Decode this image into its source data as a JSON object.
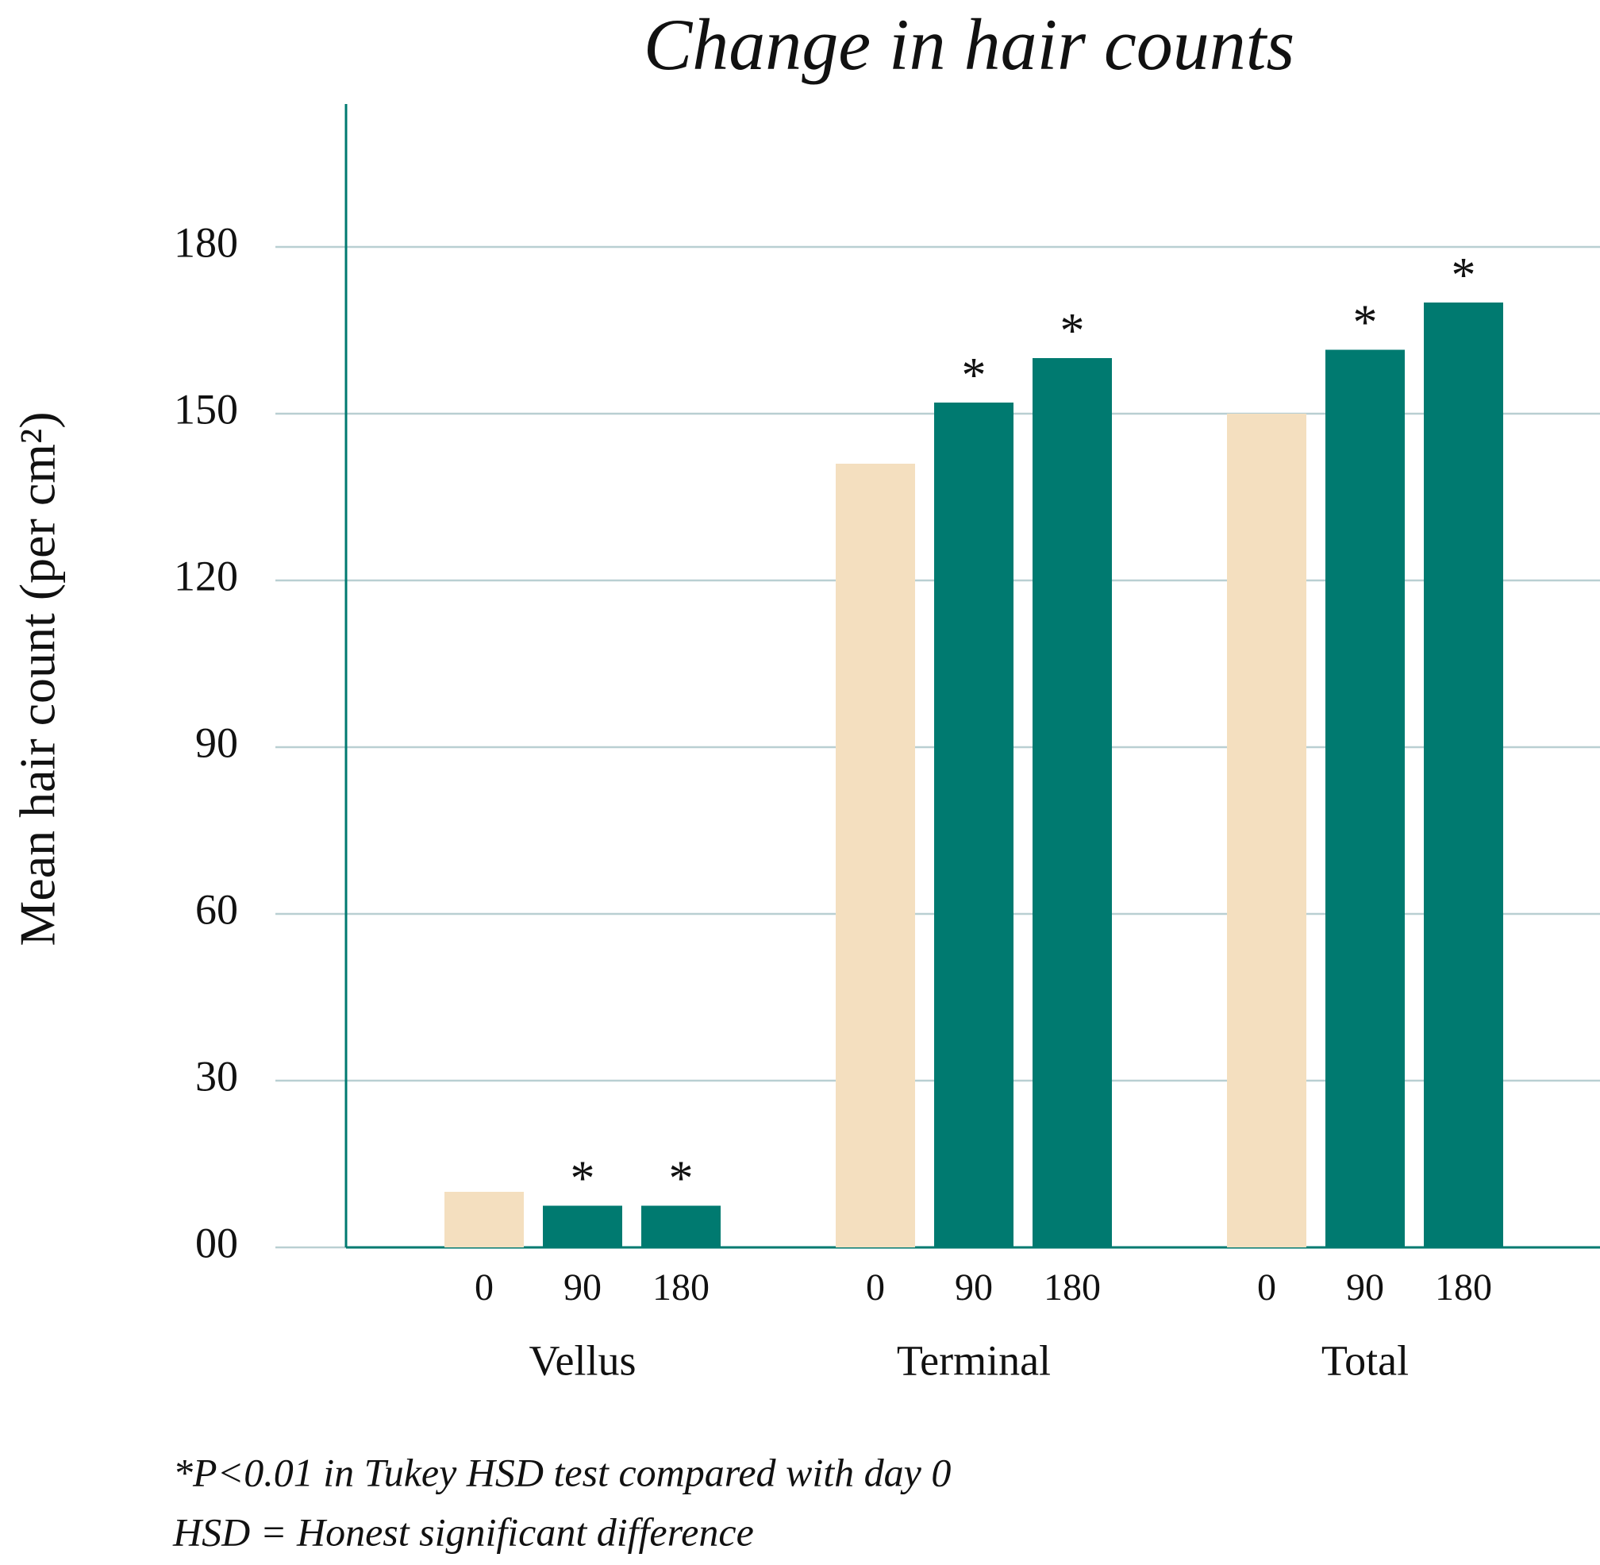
{
  "chart_data": {
    "type": "bar",
    "title": "Change in hair counts",
    "y_label": "Mean hair count (per cm²)",
    "categories": [
      "Vellus",
      "Terminal",
      "Total"
    ],
    "series": [
      {
        "name": "0",
        "color": "#f4dfbf",
        "values": [
          10,
          141,
          150
        ]
      },
      {
        "name": "90",
        "color": "#007a70",
        "values": [
          7.5,
          152,
          161.5
        ],
        "annotation": "*"
      },
      {
        "name": "180",
        "color": "#007a70",
        "values": [
          7.5,
          160,
          170
        ],
        "annotation": "*"
      }
    ],
    "ylim": [
      0,
      205
    ],
    "yticks": [
      {
        "value": 0,
        "label": "00"
      },
      30,
      60,
      90,
      120,
      150,
      180
    ],
    "grid": true,
    "footnotes": [
      "*P<0.01 in Tukey HSD test compared with day 0",
      "HSD = Honest significant difference"
    ]
  }
}
